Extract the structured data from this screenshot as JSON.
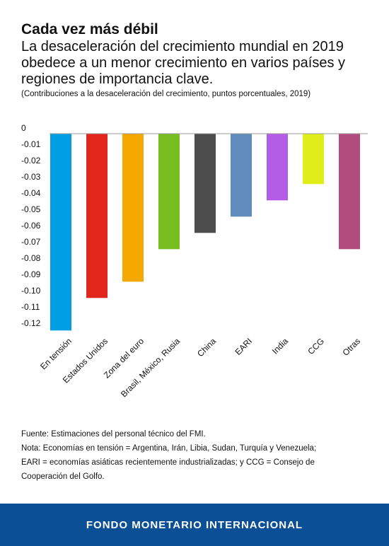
{
  "header": {
    "title": "Cada vez más débil",
    "subtitle": "La desaceleración del crecimiento mundial en 2019 obedece a un menor crecimiento en varios países y regiones de importancia clave.",
    "note": "(Contribuciones a la desaceleración del crecimiento, puntos porcentuales, 2019)"
  },
  "chart_data": {
    "type": "bar",
    "categories": [
      "En tensión",
      "Estados Unidos",
      "Zona del euro",
      "Brasil, México, Rusia",
      "China",
      "EARI",
      "India",
      "CCG",
      "Otras"
    ],
    "values": [
      -0.121,
      -0.101,
      -0.091,
      -0.071,
      -0.061,
      -0.051,
      -0.041,
      -0.031,
      -0.071
    ],
    "colors": [
      "#009fe3",
      "#e1261c",
      "#f5a800",
      "#78be20",
      "#4d4d4d",
      "#5f8cba",
      "#b35ce6",
      "#dfee19",
      "#b24c7e"
    ],
    "yticks": [
      "0",
      "-0.01",
      "-0.02",
      "-0.03",
      "-0.04",
      "-0.05",
      "-0.06",
      "-0.07",
      "-0.08",
      "-0.09",
      "-0.10",
      "-0.11",
      "-0.12"
    ],
    "ylim": [
      -0.12,
      0
    ],
    "grid": false
  },
  "footnotes": {
    "source": "Fuente: Estimaciones del personal técnico del FMI.",
    "note_line1": "Nota: Economías en tensión  = Argentina, Irán, Libia, Sudan, Turquía y Venezuela;",
    "note_line2": "EARI = economías asiáticas recientemente industrializadas; y CCG = Consejo de",
    "note_line3": "Cooperación del Golfo."
  },
  "footer": {
    "label": "FONDO MONETARIO INTERNACIONAL"
  }
}
